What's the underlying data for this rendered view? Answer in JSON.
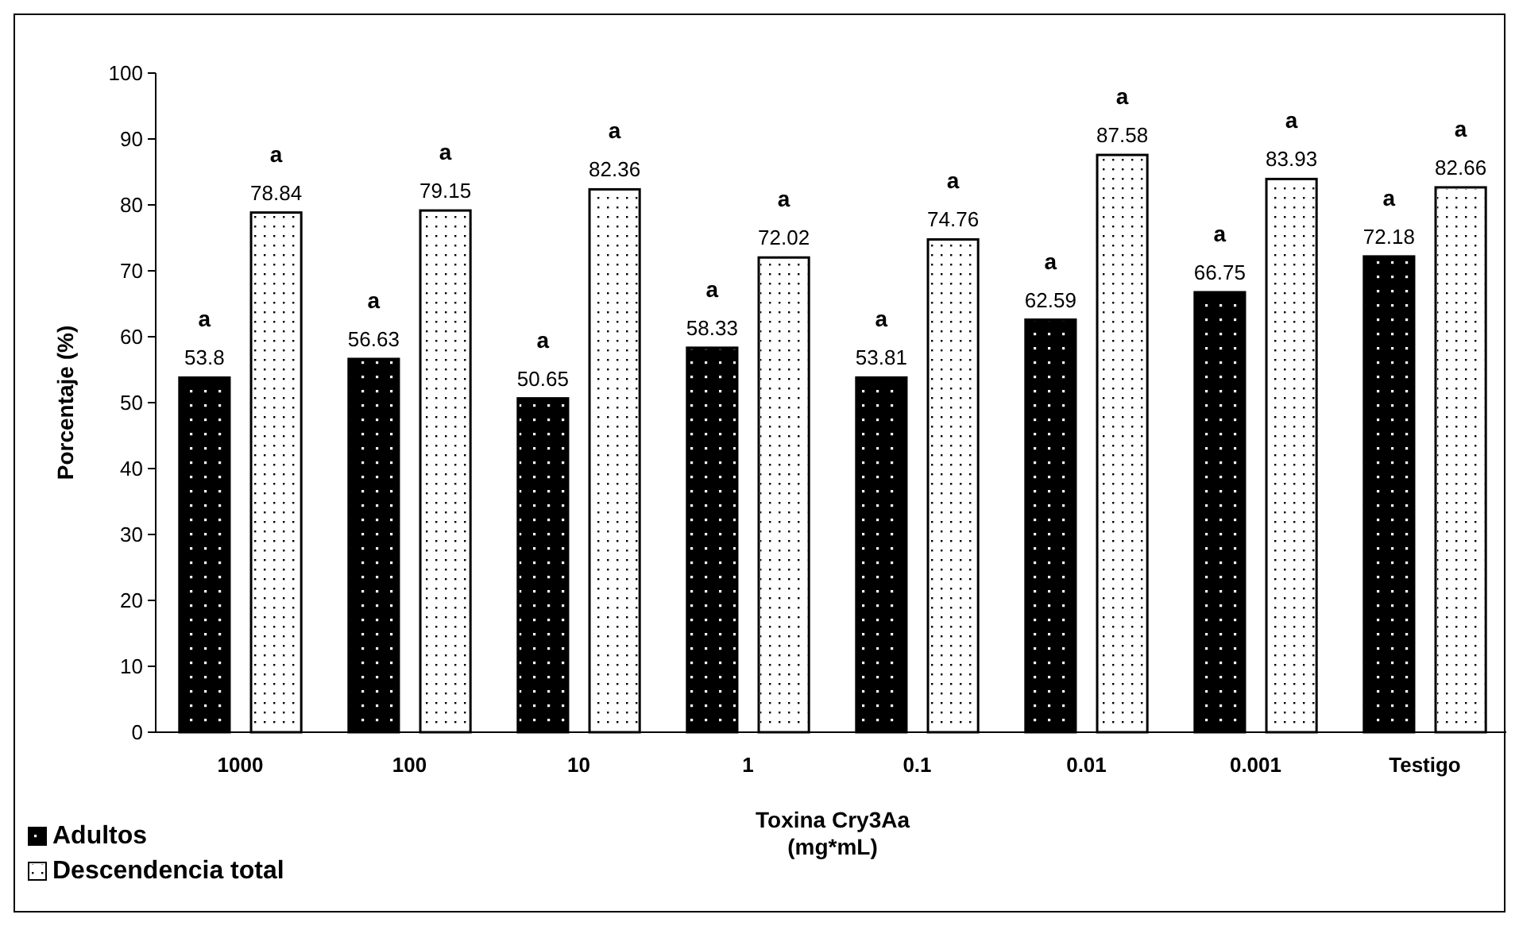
{
  "chart_data": {
    "type": "bar",
    "xlabel": "Toxina Cry3Aa\n(mg*mL)",
    "ylabel": "Porcentaje (%)",
    "categories": [
      "1000",
      "100",
      "10",
      "1",
      "0.1",
      "0.01",
      "0.001",
      "Testigo"
    ],
    "series": [
      {
        "name": "Adultos",
        "color": "#000000",
        "values": [
          53.8,
          56.63,
          50.65,
          58.33,
          53.81,
          62.59,
          66.75,
          72.18
        ]
      },
      {
        "name": "Descendencia total",
        "color": "#ffffff",
        "values": [
          78.84,
          79.15,
          82.36,
          72.02,
          74.76,
          87.58,
          83.93,
          82.66
        ]
      }
    ],
    "ylim": [
      0,
      100
    ],
    "yticks": [
      0,
      10,
      20,
      30,
      40,
      50,
      60,
      70,
      80,
      90,
      100
    ],
    "grid": false,
    "legend": "bottom left",
    "data_labels": true,
    "annotations": [
      "a",
      "a",
      "a",
      "a",
      "a",
      "a",
      "a",
      "a",
      "a",
      "a",
      "a",
      "a",
      "a",
      "a",
      "a",
      "a"
    ]
  }
}
